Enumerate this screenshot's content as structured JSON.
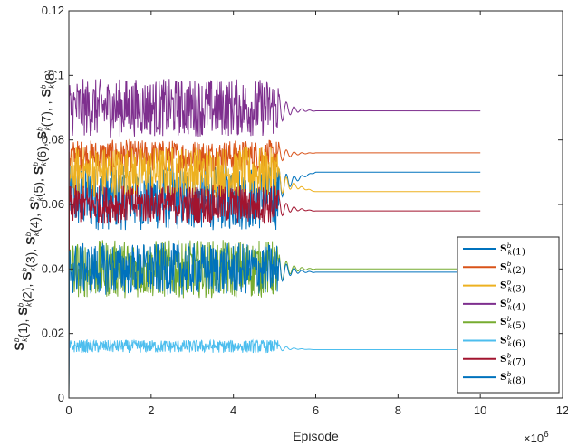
{
  "chart_data": {
    "type": "line",
    "xlabel": "Episode",
    "x_multiplier": "×10^6",
    "ylabel": "S_k^b(1), S_k^b(2), S_k^b(3), S_k^b(4), S_k^b(5), S_k^b(6), S_k^b(7), , S_k^b(8)",
    "xlim": [
      0,
      12
    ],
    "ylim": [
      0,
      0.12
    ],
    "xticks": [
      "0",
      "2",
      "4",
      "6",
      "8",
      "10",
      "12"
    ],
    "yticks": [
      "0",
      "0.02",
      "0.04",
      "0.06",
      "0.08",
      "0.1",
      "0.12"
    ],
    "grid": false,
    "legend_position": "bottom-right",
    "x_range": [
      0,
      10
    ],
    "convergence_point": 5.1,
    "series": [
      {
        "name": "S_k^b(1)",
        "color": "#0072BD",
        "noisy_mean": 0.062,
        "noisy_amp": 0.01,
        "final_value": 0.07
      },
      {
        "name": "S_k^b(2)",
        "color": "#D95319",
        "noisy_mean": 0.075,
        "noisy_amp": 0.005,
        "final_value": 0.076
      },
      {
        "name": "S_k^b(3)",
        "color": "#EDB120",
        "noisy_mean": 0.07,
        "noisy_amp": 0.008,
        "final_value": 0.064
      },
      {
        "name": "S_k^b(4)",
        "color": "#7E2F8E",
        "noisy_mean": 0.09,
        "noisy_amp": 0.009,
        "final_value": 0.089
      },
      {
        "name": "S_k^b(5)",
        "color": "#77AC30",
        "noisy_mean": 0.04,
        "noisy_amp": 0.009,
        "final_value": 0.04
      },
      {
        "name": "S_k^b(6)",
        "color": "#4DBEEE",
        "noisy_mean": 0.016,
        "noisy_amp": 0.002,
        "final_value": 0.015
      },
      {
        "name": "S_k^b(7)",
        "color": "#A2142F",
        "noisy_mean": 0.06,
        "noisy_amp": 0.006,
        "final_value": 0.058
      },
      {
        "name": "S_k^b(8)",
        "color": "#0072BD",
        "noisy_mean": 0.04,
        "noisy_amp": 0.008,
        "final_value": 0.039
      }
    ]
  }
}
